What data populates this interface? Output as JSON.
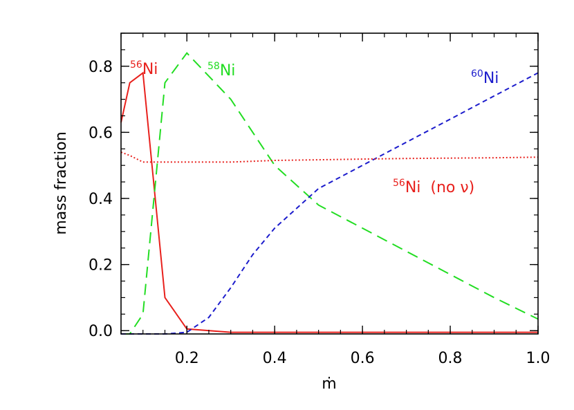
{
  "chart_data": {
    "type": "line",
    "title": "",
    "xlabel": "ṁ",
    "ylabel": "mass fraction",
    "xlim": [
      0.05,
      1.0
    ],
    "ylim": [
      -0.01,
      0.9
    ],
    "xticks": [
      "0.2",
      "0.4",
      "0.6",
      "0.8",
      "1.0"
    ],
    "yticks": [
      "0.0",
      "0.2",
      "0.4",
      "0.6",
      "0.8"
    ],
    "grid": false,
    "series": [
      {
        "sup": "56",
        "base": "Ni",
        "suffix": "",
        "color": "#e8201c",
        "linestyle": "solid",
        "x": [
          0.05,
          0.07,
          0.1,
          0.15,
          0.2,
          0.3,
          0.4,
          0.5,
          0.6,
          0.7,
          0.8,
          0.9,
          1.0
        ],
        "y": [
          0.63,
          0.75,
          0.78,
          0.1,
          0.005,
          -0.005,
          -0.005,
          -0.005,
          -0.005,
          -0.005,
          -0.005,
          -0.005,
          -0.005
        ]
      },
      {
        "sup": "58",
        "base": "Ni",
        "suffix": "",
        "color": "#22dd22",
        "linestyle": "longdash",
        "x": [
          0.05,
          0.07,
          0.1,
          0.15,
          0.2,
          0.3,
          0.4,
          0.5,
          0.6,
          0.7,
          0.8,
          0.9,
          1.0
        ],
        "y": [
          -0.01,
          -0.01,
          0.05,
          0.75,
          0.84,
          0.7,
          0.5,
          0.38,
          0.31,
          0.24,
          0.17,
          0.1,
          0.035
        ]
      },
      {
        "sup": "60",
        "base": "Ni",
        "suffix": "",
        "color": "#1c1ccc",
        "linestyle": "dash",
        "x": [
          0.05,
          0.1,
          0.15,
          0.2,
          0.25,
          0.3,
          0.35,
          0.4,
          0.5,
          0.6,
          0.7,
          0.8,
          0.9,
          1.0
        ],
        "y": [
          -0.01,
          -0.01,
          -0.01,
          -0.005,
          0.04,
          0.13,
          0.23,
          0.31,
          0.43,
          0.5,
          0.57,
          0.64,
          0.71,
          0.78
        ]
      },
      {
        "sup": "56",
        "base": "Ni",
        "suffix": "(no ν)",
        "color": "#e8201c",
        "linestyle": "dotted",
        "x": [
          0.05,
          0.07,
          0.1,
          0.15,
          0.2,
          0.3,
          0.4,
          0.5,
          0.6,
          0.7,
          0.8,
          0.9,
          1.0
        ],
        "y": [
          0.54,
          0.53,
          0.51,
          0.51,
          0.51,
          0.51,
          0.515,
          0.517,
          0.519,
          0.521,
          0.522,
          0.523,
          0.525
        ]
      }
    ]
  }
}
